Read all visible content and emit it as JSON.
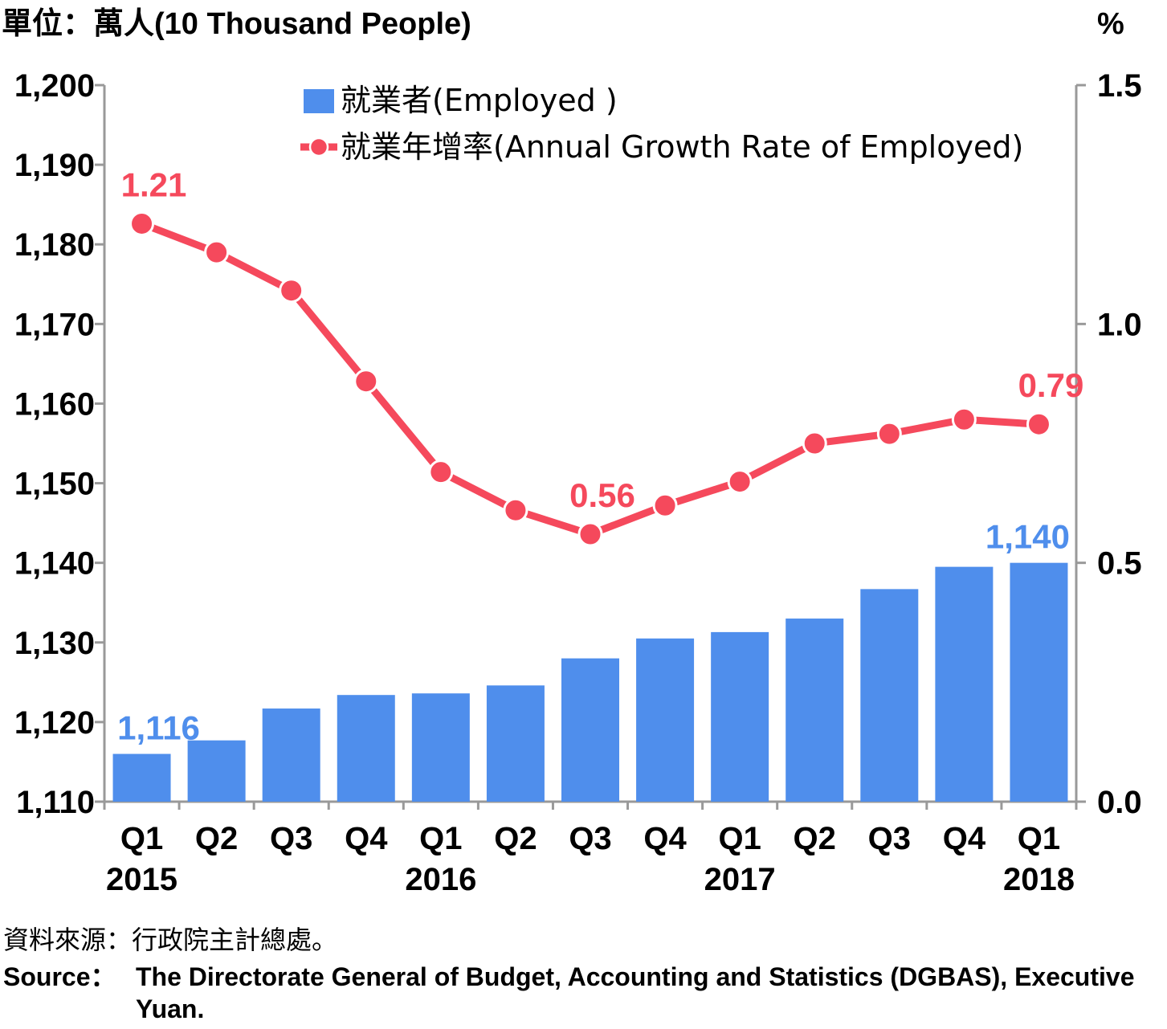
{
  "unit_left": "單位：萬人(10 Thousand People)",
  "unit_right": "%",
  "source": {
    "zh": "資料來源：行政院主計總處。",
    "en_label": "Source：",
    "en_text": "The Directorate General of Budget, Accounting and Statistics (DGBAS), Executive Yuan."
  },
  "colors": {
    "bar": "#4f8eec",
    "line": "#f5495c",
    "axis": "#999999"
  },
  "chart_data": {
    "type": "bar+line",
    "categories": [
      "Q1",
      "Q2",
      "Q3",
      "Q4",
      "Q1",
      "Q2",
      "Q3",
      "Q4",
      "Q1",
      "Q2",
      "Q3",
      "Q4",
      "Q1"
    ],
    "years": [
      {
        "label": "2015",
        "index": 0
      },
      {
        "label": "2016",
        "index": 4
      },
      {
        "label": "2017",
        "index": 8
      },
      {
        "label": "2018",
        "index": 12
      }
    ],
    "series": [
      {
        "name": "就業者(Employed )",
        "type": "bar",
        "axis": "left",
        "values": [
          1116,
          1117.7,
          1121.7,
          1123.4,
          1123.6,
          1124.6,
          1128.0,
          1130.5,
          1131.3,
          1133.0,
          1136.7,
          1139.5,
          1140.0
        ],
        "labels": [
          {
            "index": 0,
            "text": "1,116"
          },
          {
            "index": 12,
            "text": "1,140"
          }
        ]
      },
      {
        "name": "就業年增率(Annual Growth Rate of Employed)",
        "type": "line",
        "axis": "right",
        "values": [
          1.21,
          1.15,
          1.07,
          0.88,
          0.69,
          0.61,
          0.56,
          0.62,
          0.67,
          0.75,
          0.77,
          0.8,
          0.79
        ],
        "labels": [
          {
            "index": 0,
            "text": "1.21"
          },
          {
            "index": 6,
            "text": "0.56"
          },
          {
            "index": 12,
            "text": "0.79"
          }
        ]
      }
    ],
    "y_left": {
      "min": 1110,
      "max": 1200,
      "step": 10,
      "ticks": [
        "1,110",
        "1,120",
        "1,130",
        "1,140",
        "1,150",
        "1,160",
        "1,170",
        "1,180",
        "1,190",
        "1,200"
      ]
    },
    "y_right": {
      "min": 0.0,
      "max": 1.5,
      "step": 0.5,
      "ticks": [
        "0.0",
        "0.5",
        "1.0",
        "1.5"
      ]
    },
    "legend_position": "top-center",
    "grid": false
  }
}
